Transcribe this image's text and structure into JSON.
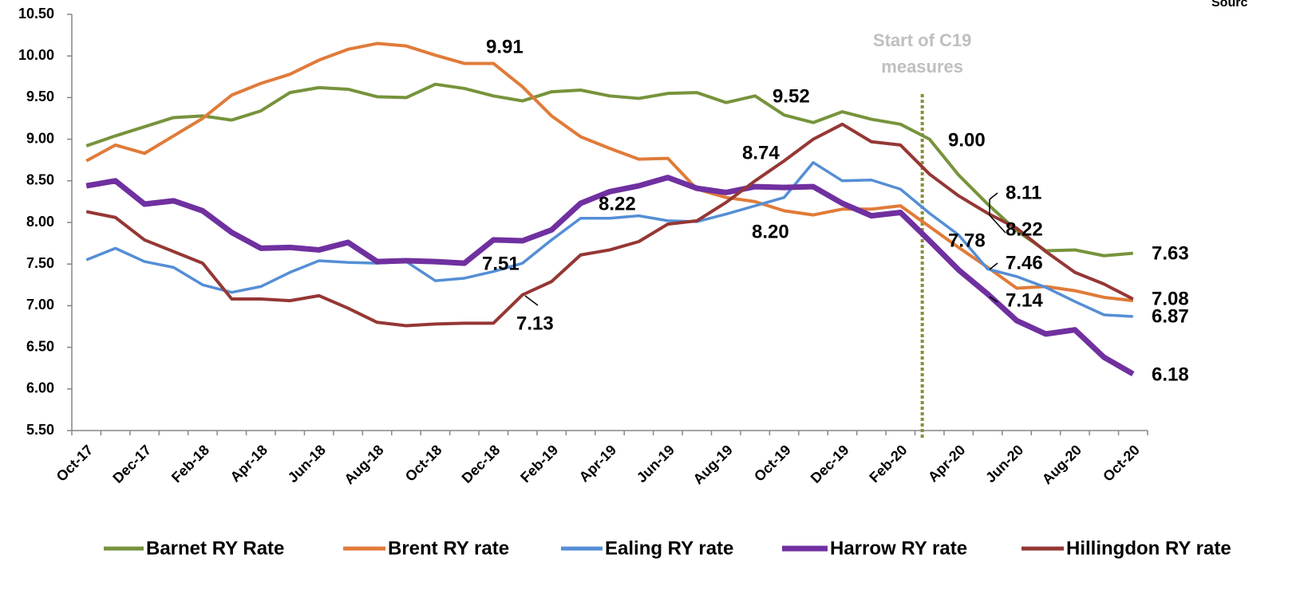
{
  "chart_data": {
    "type": "line",
    "source": "Sourc",
    "categories": [
      "Oct-17",
      null,
      "Dec-17",
      null,
      "Feb-18",
      null,
      "Apr-18",
      null,
      "Jun-18",
      null,
      "Aug-18",
      null,
      "Oct-18",
      null,
      "Dec-18",
      null,
      "Feb-19",
      null,
      "Apr-19",
      null,
      "Jun-19",
      null,
      "Aug-19",
      null,
      "Oct-19",
      null,
      "Dec-19",
      null,
      "Feb-20",
      null,
      "Apr-20",
      null,
      "Jun-20",
      null,
      "Aug-20",
      null,
      "Oct-20"
    ],
    "ylim": [
      5.5,
      10.5
    ],
    "yticks": [
      {
        "value": 5.5,
        "label": "5.50"
      },
      {
        "value": 6,
        "label": "6.00"
      },
      {
        "value": 6.5,
        "label": "6.50"
      },
      {
        "value": 7,
        "label": "7.00"
      },
      {
        "value": 7.5,
        "label": "7.50"
      },
      {
        "value": 8,
        "label": "8.00"
      },
      {
        "value": 8.5,
        "label": "8.50"
      },
      {
        "value": 9,
        "label": "9.00"
      },
      {
        "value": 9.5,
        "label": "9.50"
      },
      {
        "value": 10,
        "label": "10.00"
      },
      {
        "value": 10.5,
        "label": "10.50"
      }
    ],
    "grid": false,
    "legend": "bottom",
    "vertical_marker": {
      "lines": [
        "Start of C19",
        "measures"
      ],
      "color": "#8c8c3c"
    },
    "annotations": [
      "9.91",
      "9.52",
      "8.74",
      "8.22",
      "8.20",
      "7.51",
      "7.13",
      "9.00",
      "8.11",
      "8.22",
      "7.78",
      "7.46",
      "7.14",
      "7.63",
      "7.08",
      "6.87",
      "6.18"
    ],
    "series": [
      {
        "name": "Barnet RY Rate",
        "color": "#77933c",
        "width": 4,
        "values": [
          8.92,
          9.04,
          9.15,
          9.26,
          9.28,
          9.23,
          9.34,
          9.56,
          9.62,
          9.6,
          9.51,
          9.5,
          9.66,
          9.61,
          9.52,
          9.46,
          9.57,
          9.59,
          9.52,
          9.49,
          9.55,
          9.56,
          9.44,
          9.52,
          9.29,
          9.2,
          9.33,
          9.24,
          9.18,
          9.0,
          8.57,
          8.22,
          7.9,
          7.66,
          7.67,
          7.6,
          7.63
        ]
      },
      {
        "name": "Brent RY rate",
        "color": "#e07b39",
        "width": 4,
        "values": [
          8.74,
          8.93,
          8.83,
          9.04,
          9.25,
          9.53,
          9.67,
          9.78,
          9.95,
          10.08,
          10.15,
          10.12,
          10.01,
          9.91,
          9.91,
          9.63,
          9.28,
          9.03,
          8.89,
          8.76,
          8.77,
          8.4,
          8.3,
          8.25,
          8.14,
          8.09,
          8.16,
          8.16,
          8.2,
          7.95,
          7.7,
          7.46,
          7.21,
          7.23,
          7.18,
          7.1,
          7.06
        ]
      },
      {
        "name": "Ealing RY rate",
        "color": "#558ed5",
        "width": 3.5,
        "values": [
          7.55,
          7.69,
          7.53,
          7.46,
          7.25,
          7.16,
          7.23,
          7.4,
          7.54,
          7.52,
          7.51,
          7.53,
          7.3,
          7.33,
          7.41,
          7.51,
          7.79,
          8.05,
          8.05,
          8.08,
          8.02,
          8.01,
          8.1,
          8.2,
          8.3,
          8.72,
          8.5,
          8.51,
          8.4,
          8.11,
          7.85,
          7.44,
          7.35,
          7.22,
          7.05,
          6.89,
          6.87
        ]
      },
      {
        "name": "Harrow RY rate",
        "color": "#7030a0",
        "width": 7,
        "values": [
          8.44,
          8.5,
          8.22,
          8.26,
          8.14,
          7.88,
          7.69,
          7.7,
          7.67,
          7.76,
          7.53,
          7.54,
          7.53,
          7.51,
          7.79,
          7.78,
          7.91,
          8.23,
          8.37,
          8.44,
          8.54,
          8.41,
          8.36,
          8.43,
          8.42,
          8.43,
          8.23,
          8.08,
          8.12,
          7.78,
          7.43,
          7.14,
          6.82,
          6.66,
          6.71,
          6.38,
          6.18
        ]
      },
      {
        "name": "Hillingdon RY rate",
        "color": "#953735",
        "width": 4,
        "values": [
          8.13,
          8.06,
          7.79,
          7.65,
          7.51,
          7.08,
          7.08,
          7.06,
          7.12,
          6.97,
          6.8,
          6.76,
          6.78,
          6.79,
          6.79,
          7.13,
          7.29,
          7.61,
          7.67,
          7.77,
          7.98,
          8.02,
          8.24,
          8.5,
          8.74,
          9.0,
          9.18,
          8.97,
          8.93,
          8.58,
          8.32,
          8.11,
          7.93,
          7.65,
          7.4,
          7.26,
          7.08
        ]
      }
    ]
  }
}
